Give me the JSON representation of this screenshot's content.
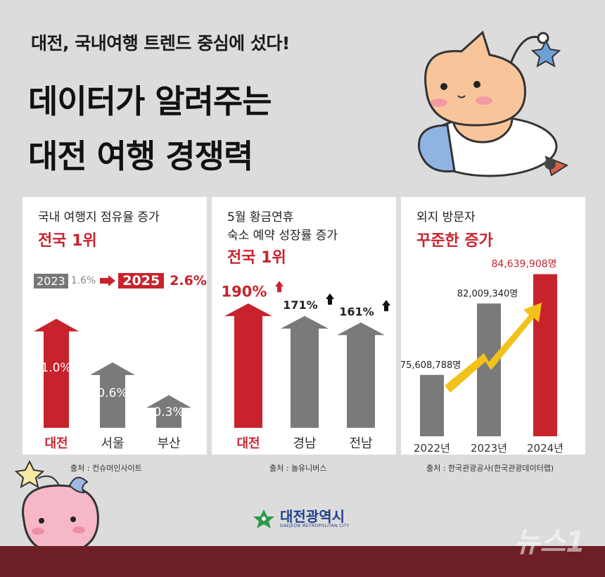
{
  "header": {
    "subtitle": "대전, 국내여행 트렌드 중심에 섰다!",
    "title_line1": "데이터가 알려주는",
    "title_line2": "대전 여행 경쟁력"
  },
  "panels": [
    {
      "label_lines": [
        "국내 여행지 점유율 증가"
      ],
      "headline": "전국 1위",
      "legend": {
        "from_year": "2023",
        "from_value": "1.6%",
        "to_year": "2025",
        "to_value": "2.6%"
      },
      "source": "출처 : 컨슈머인사이트"
    },
    {
      "label_lines": [
        "5월 황금연휴",
        "숙소 예약 성장률 증가"
      ],
      "headline": "전국 1위",
      "source": "출처 : 놀유니버스"
    },
    {
      "label_lines": [
        "외지 방문자"
      ],
      "headline": "꾸준한 증가",
      "source": "출처 : 한국관광공사(한국관광데이터랩)"
    }
  ],
  "chart_data": [
    {
      "type": "bar",
      "categories": [
        "대전",
        "서울",
        "부산"
      ],
      "values": [
        1.0,
        0.6,
        0.3
      ],
      "value_labels": [
        "1.0%",
        "0.6%",
        "0.3%"
      ],
      "highlight_color": "#c8232c",
      "base_color": "#7a7a7a",
      "ylim": [
        0,
        1.2
      ]
    },
    {
      "type": "bar",
      "categories": [
        "대전",
        "경남",
        "전남"
      ],
      "values": [
        190,
        171,
        161
      ],
      "value_labels": [
        "190%",
        "171%",
        "161%"
      ],
      "highlight_color": "#c8232c",
      "base_color": "#7a7a7a",
      "ylim": [
        0,
        200
      ]
    },
    {
      "type": "bar",
      "categories": [
        "2022년",
        "2023년",
        "2024년"
      ],
      "values": [
        75608788,
        82009340,
        84639908
      ],
      "value_labels": [
        "75,608,788명",
        "82,009,340명",
        "84,639,908명"
      ],
      "highlight_color": "#c8232c",
      "base_color": "#7a7a7a",
      "trend_color": "#f2c21b"
    }
  ],
  "footer": {
    "logo_name": "대전광역시",
    "logo_sub": "DAEJEON METROPOLITAN CITY",
    "watermark": "뉴스1"
  },
  "icons": [
    "star-icon",
    "mascot-orange",
    "mascot-pink",
    "rocket-icon",
    "arrow-right-icon",
    "arrow-up-icon",
    "trend-arrow-icon",
    "city-logo-icon"
  ]
}
